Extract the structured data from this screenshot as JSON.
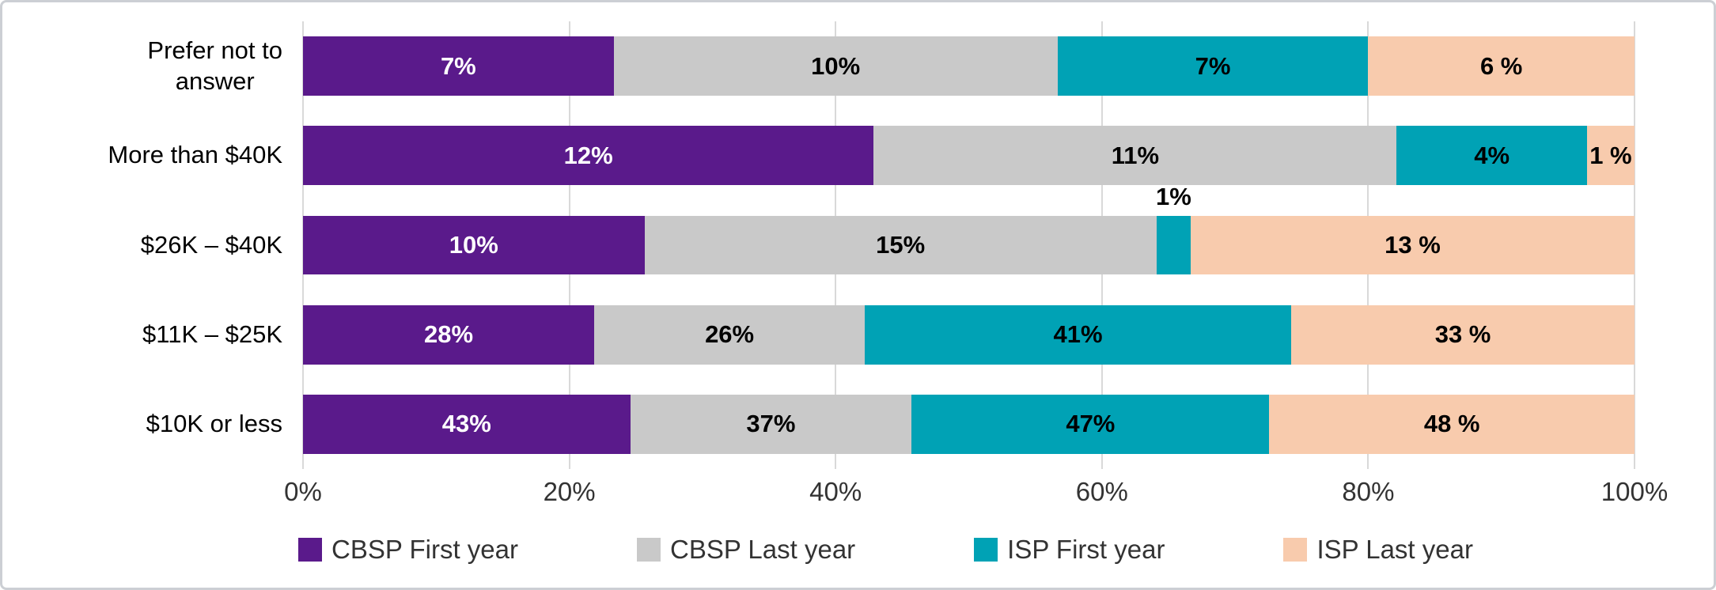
{
  "page": {
    "background": "#ffffff",
    "frame_border_color": "#cccfd4"
  },
  "chart_data": {
    "type": "bar",
    "variant": "horizontal-100pct-stacked",
    "title": "",
    "xlabel": "",
    "ylabel": "",
    "categories_top_to_bottom": [
      "Prefer not to\nanswer",
      "More than $40K",
      "$26K – $40K",
      "$11K – $25K",
      "$10K or less"
    ],
    "series": [
      {
        "name": "CBSP First year",
        "color": "#5a1a8b",
        "label_color": "#ffffff",
        "values": [
          7,
          12,
          10,
          28,
          43
        ],
        "labels": [
          "7%",
          "12%",
          "10%",
          "28%",
          "43%"
        ]
      },
      {
        "name": "CBSP Last year",
        "color": "#c9c9c9",
        "label_color": "#000000",
        "values": [
          10,
          11,
          15,
          26,
          37
        ],
        "labels": [
          "10%",
          "11%",
          "15%",
          "26%",
          "37%"
        ]
      },
      {
        "name": "ISP First year",
        "color": "#00a2b5",
        "label_color": "#000000",
        "values": [
          7,
          4,
          1,
          41,
          47
        ],
        "labels": [
          "7%",
          "4%",
          "1%",
          "41%",
          "47%"
        ]
      },
      {
        "name": "ISP Last year",
        "color": "#f8cbad",
        "label_color": "#000000",
        "values": [
          6,
          1,
          13,
          33,
          48
        ],
        "labels": [
          "6 %",
          "1 %",
          "13 %",
          "33 %",
          "48 %"
        ]
      }
    ],
    "x_axis": {
      "min": 0,
      "max": 100,
      "ticks": [
        "0%",
        "20%",
        "40%",
        "60%",
        "80%",
        "100%"
      ]
    },
    "gridlines": true,
    "gridline_color": "#d9d9d9",
    "legend": {
      "position": "bottom",
      "entries": [
        "CBSP First year",
        "CBSP Last year",
        "ISP First year",
        "ISP Last year"
      ]
    },
    "label_overrides": [
      {
        "category": "$26K – $40K",
        "series": "ISP First year",
        "position": "above"
      }
    ]
  }
}
